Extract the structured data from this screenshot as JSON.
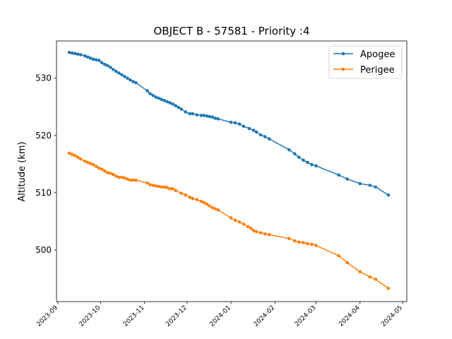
{
  "chart_data": {
    "type": "line",
    "title": "OBJECT B - 57581 - Priority :4",
    "xlabel": "",
    "ylabel": "Altitude (km)",
    "xlim": [
      "2023-08-31",
      "2024-05-04"
    ],
    "ylim": [
      491,
      536.5
    ],
    "x_ticks": [
      "2023-09",
      "2023-10",
      "2023-11",
      "2023-12",
      "2024-01",
      "2024-02",
      "2024-03",
      "2024-04",
      "2024-05"
    ],
    "y_ticks": [
      500,
      510,
      520,
      530
    ],
    "grid": false,
    "legend_position": "top-right",
    "series": [
      {
        "name": "Apogee",
        "color": "#1f77b4",
        "points": [
          [
            "2023-09-09",
            534.5
          ],
          [
            "2023-09-11",
            534.4
          ],
          [
            "2023-09-13",
            534.3
          ],
          [
            "2023-09-15",
            534.2
          ],
          [
            "2023-09-17",
            534.1
          ],
          [
            "2023-09-20",
            533.9
          ],
          [
            "2023-09-22",
            533.7
          ],
          [
            "2023-09-24",
            533.5
          ],
          [
            "2023-09-26",
            533.3
          ],
          [
            "2023-09-28",
            533.2
          ],
          [
            "2023-09-30",
            533.1
          ],
          [
            "2023-10-02",
            532.7
          ],
          [
            "2023-10-04",
            532.4
          ],
          [
            "2023-10-06",
            532.2
          ],
          [
            "2023-10-08",
            531.9
          ],
          [
            "2023-10-10",
            531.5
          ],
          [
            "2023-10-12",
            531.2
          ],
          [
            "2023-10-14",
            530.9
          ],
          [
            "2023-10-16",
            530.6
          ],
          [
            "2023-10-18",
            530.3
          ],
          [
            "2023-10-20",
            530.0
          ],
          [
            "2023-10-22",
            529.7
          ],
          [
            "2023-10-24",
            529.4
          ],
          [
            "2023-10-26",
            529.2
          ],
          [
            "2023-11-03",
            527.8
          ],
          [
            "2023-11-05",
            527.3
          ],
          [
            "2023-11-07",
            527.0
          ],
          [
            "2023-11-09",
            526.7
          ],
          [
            "2023-11-11",
            526.5
          ],
          [
            "2023-11-13",
            526.3
          ],
          [
            "2023-11-15",
            526.1
          ],
          [
            "2023-11-17",
            525.9
          ],
          [
            "2023-11-19",
            525.7
          ],
          [
            "2023-11-21",
            525.5
          ],
          [
            "2023-11-23",
            525.2
          ],
          [
            "2023-11-25",
            524.9
          ],
          [
            "2023-11-27",
            524.6
          ],
          [
            "2023-11-30",
            524.1
          ],
          [
            "2023-12-03",
            523.8
          ],
          [
            "2023-12-05",
            523.8
          ],
          [
            "2023-12-08",
            523.6
          ],
          [
            "2023-12-11",
            523.5
          ],
          [
            "2023-12-13",
            523.5
          ],
          [
            "2023-12-15",
            523.4
          ],
          [
            "2023-12-17",
            523.3
          ],
          [
            "2023-12-19",
            523.2
          ],
          [
            "2023-12-21",
            523.0
          ],
          [
            "2023-12-23",
            522.9
          ],
          [
            "2024-01-01",
            522.3
          ],
          [
            "2024-01-04",
            522.2
          ],
          [
            "2024-01-07",
            522.0
          ],
          [
            "2024-01-10",
            521.6
          ],
          [
            "2024-01-14",
            521.2
          ],
          [
            "2024-01-17",
            520.9
          ],
          [
            "2024-01-19",
            520.6
          ],
          [
            "2024-01-22",
            520.1
          ],
          [
            "2024-01-25",
            519.8
          ],
          [
            "2024-01-28",
            519.4
          ],
          [
            "2024-02-11",
            517.5
          ],
          [
            "2024-02-15",
            516.8
          ],
          [
            "2024-02-18",
            516.2
          ],
          [
            "2024-02-21",
            515.7
          ],
          [
            "2024-02-24",
            515.3
          ],
          [
            "2024-02-27",
            514.9
          ],
          [
            "2024-03-01",
            514.7
          ],
          [
            "2024-03-17",
            513.1
          ],
          [
            "2024-03-23",
            512.4
          ],
          [
            "2024-04-01",
            511.6
          ],
          [
            "2024-04-08",
            511.3
          ],
          [
            "2024-04-12",
            511.0
          ],
          [
            "2024-04-21",
            509.6
          ]
        ]
      },
      {
        "name": "Perigee",
        "color": "#ff7f0e",
        "points": [
          [
            "2023-09-09",
            516.9
          ],
          [
            "2023-09-11",
            516.7
          ],
          [
            "2023-09-13",
            516.5
          ],
          [
            "2023-09-15",
            516.2
          ],
          [
            "2023-09-17",
            515.9
          ],
          [
            "2023-09-20",
            515.5
          ],
          [
            "2023-09-22",
            515.3
          ],
          [
            "2023-09-24",
            515.1
          ],
          [
            "2023-09-26",
            514.9
          ],
          [
            "2023-09-28",
            514.6
          ],
          [
            "2023-09-30",
            514.3
          ],
          [
            "2023-10-02",
            514.1
          ],
          [
            "2023-10-04",
            513.8
          ],
          [
            "2023-10-06",
            513.5
          ],
          [
            "2023-10-08",
            513.4
          ],
          [
            "2023-10-10",
            513.2
          ],
          [
            "2023-10-12",
            512.9
          ],
          [
            "2023-10-14",
            512.7
          ],
          [
            "2023-10-16",
            512.7
          ],
          [
            "2023-10-18",
            512.6
          ],
          [
            "2023-10-20",
            512.4
          ],
          [
            "2023-10-22",
            512.2
          ],
          [
            "2023-10-24",
            512.2
          ],
          [
            "2023-10-26",
            512.2
          ],
          [
            "2023-11-03",
            511.7
          ],
          [
            "2023-11-05",
            511.4
          ],
          [
            "2023-11-07",
            511.3
          ],
          [
            "2023-11-09",
            511.2
          ],
          [
            "2023-11-11",
            511.1
          ],
          [
            "2023-11-13",
            511.0
          ],
          [
            "2023-11-15",
            511.0
          ],
          [
            "2023-11-17",
            510.9
          ],
          [
            "2023-11-19",
            510.7
          ],
          [
            "2023-11-21",
            510.7
          ],
          [
            "2023-11-23",
            510.4
          ],
          [
            "2023-11-27",
            509.9
          ],
          [
            "2023-11-30",
            509.6
          ],
          [
            "2023-12-03",
            509.2
          ],
          [
            "2023-12-05",
            509.0
          ],
          [
            "2023-12-08",
            508.8
          ],
          [
            "2023-12-11",
            508.5
          ],
          [
            "2023-12-13",
            508.3
          ],
          [
            "2023-12-15",
            508.0
          ],
          [
            "2023-12-17",
            507.7
          ],
          [
            "2023-12-19",
            507.4
          ],
          [
            "2023-12-21",
            507.2
          ],
          [
            "2023-12-23",
            507.0
          ],
          [
            "2024-01-01",
            505.6
          ],
          [
            "2024-01-04",
            505.2
          ],
          [
            "2024-01-07",
            504.9
          ],
          [
            "2024-01-10",
            504.5
          ],
          [
            "2024-01-13",
            504.1
          ],
          [
            "2024-01-15",
            503.8
          ],
          [
            "2024-01-17",
            503.4
          ],
          [
            "2024-01-19",
            503.2
          ],
          [
            "2024-01-22",
            503.0
          ],
          [
            "2024-01-25",
            502.8
          ],
          [
            "2024-01-28",
            502.7
          ],
          [
            "2024-02-11",
            502.0
          ],
          [
            "2024-02-15",
            501.6
          ],
          [
            "2024-02-18",
            501.4
          ],
          [
            "2024-02-21",
            501.3
          ],
          [
            "2024-02-24",
            501.1
          ],
          [
            "2024-02-27",
            501.0
          ],
          [
            "2024-03-01",
            500.8
          ],
          [
            "2024-03-17",
            499.0
          ],
          [
            "2024-03-23",
            497.8
          ],
          [
            "2024-04-01",
            496.2
          ],
          [
            "2024-04-08",
            495.3
          ],
          [
            "2024-04-12",
            494.9
          ],
          [
            "2024-04-21",
            493.3
          ]
        ]
      }
    ]
  }
}
